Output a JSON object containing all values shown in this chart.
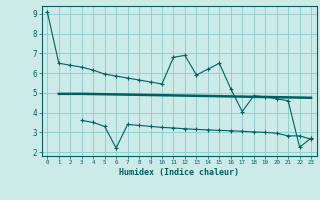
{
  "xlabel": "Humidex (Indice chaleur)",
  "bg_color": "#cceae8",
  "line_color": "#006060",
  "grid_color": "#88cccc",
  "xlim": [
    -0.5,
    23.5
  ],
  "ylim": [
    1.8,
    9.4
  ],
  "yticks": [
    2,
    3,
    4,
    5,
    6,
    7,
    8,
    9
  ],
  "xticks": [
    0,
    1,
    2,
    3,
    4,
    5,
    6,
    7,
    8,
    9,
    10,
    11,
    12,
    13,
    14,
    15,
    16,
    17,
    18,
    19,
    20,
    21,
    22,
    23
  ],
  "line1_x": [
    0,
    1,
    2,
    3,
    4,
    5,
    6,
    7,
    8,
    9,
    10,
    11,
    12,
    13,
    14,
    15,
    16,
    17,
    18,
    19,
    20,
    21,
    22,
    23
  ],
  "line1_y": [
    9.1,
    6.5,
    6.4,
    6.3,
    6.15,
    5.95,
    5.85,
    5.75,
    5.65,
    5.55,
    5.45,
    6.8,
    6.9,
    5.9,
    6.2,
    6.5,
    5.2,
    4.05,
    4.85,
    4.8,
    4.7,
    4.6,
    2.25,
    2.7
  ],
  "line2_x": [
    1,
    2,
    3,
    4,
    5,
    6,
    7,
    8,
    9,
    10,
    11,
    12,
    13,
    14,
    15,
    16,
    17,
    18,
    19,
    20,
    21,
    22,
    23
  ],
  "line2_y": [
    4.95,
    4.95,
    4.95,
    4.94,
    4.93,
    4.92,
    4.91,
    4.9,
    4.89,
    4.88,
    4.87,
    4.86,
    4.85,
    4.84,
    4.83,
    4.82,
    4.81,
    4.8,
    4.79,
    4.78,
    4.77,
    4.76,
    4.75
  ],
  "line3_x": [
    3,
    4,
    5,
    6,
    7,
    8,
    9,
    10,
    11,
    12,
    13,
    14,
    15,
    16,
    17,
    18,
    19,
    20,
    21,
    22,
    23
  ],
  "line3_y": [
    3.6,
    3.5,
    3.3,
    2.2,
    3.4,
    3.35,
    3.3,
    3.25,
    3.22,
    3.18,
    3.15,
    3.12,
    3.1,
    3.08,
    3.05,
    3.02,
    3.0,
    2.95,
    2.82,
    2.82,
    2.65
  ]
}
